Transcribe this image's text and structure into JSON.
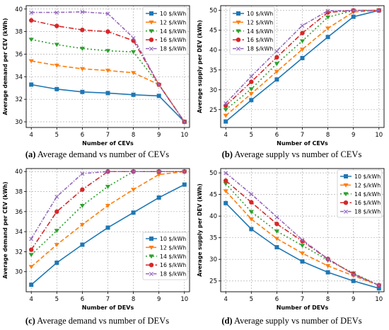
{
  "colors": [
    "#1f77b4",
    "#ff7f0e",
    "#2ca02c",
    "#d62728",
    "#9467bd"
  ],
  "captions": [
    {
      "letter": "(a)",
      "text": " Average demand vs number of CEVs"
    },
    {
      "letter": "(b)",
      "text": " Average supply vs number of CEVs"
    },
    {
      "letter": "(c)",
      "text": " Average demand vs number of DEVs"
    },
    {
      "letter": "(d)",
      "text": " Average supply vs number of DEVs"
    }
  ],
  "chart_data": [
    {
      "type": "line",
      "xlabel": "Number of CEVs",
      "ylabel": "Average demand per CEV (kWh)",
      "x": [
        4,
        5,
        6,
        7,
        8,
        9,
        10
      ],
      "xticks": [
        4,
        5,
        6,
        7,
        8,
        9,
        10
      ],
      "ylim": [
        29.5,
        40.3
      ],
      "yticks": [
        30,
        32,
        34,
        36,
        38,
        40
      ],
      "grid": true,
      "legend": "top-right",
      "series": [
        {
          "name": "10 $/kWh",
          "values": [
            33.3,
            32.9,
            32.65,
            32.55,
            32.4,
            32.3,
            30.0
          ]
        },
        {
          "name": "12 $/kWh",
          "values": [
            35.4,
            35.0,
            34.7,
            34.55,
            34.35,
            33.3,
            30.0
          ]
        },
        {
          "name": "14 $/kWh",
          "values": [
            37.3,
            36.85,
            36.5,
            36.3,
            36.2,
            33.3,
            30.0
          ]
        },
        {
          "name": "16 $/kWh",
          "values": [
            39.0,
            38.5,
            38.15,
            38.0,
            37.2,
            33.3,
            30.0
          ]
        },
        {
          "name": "18 $/kWh",
          "values": [
            39.7,
            39.7,
            39.75,
            39.6,
            37.45,
            33.3,
            30.0
          ]
        }
      ]
    },
    {
      "type": "line",
      "xlabel": "Number of CEVs",
      "ylabel": "Average supply per DEV (kWh)",
      "x": [
        4,
        5,
        6,
        7,
        8,
        9,
        10
      ],
      "xticks": [
        4,
        5,
        6,
        7,
        8,
        9,
        10
      ],
      "ylim": [
        20.5,
        51.2
      ],
      "yticks": [
        25,
        30,
        35,
        40,
        45,
        50
      ],
      "grid": true,
      "legend": "top-left",
      "series": [
        {
          "name": "10 $/kWh",
          "values": [
            22.0,
            27.4,
            32.6,
            38.0,
            43.3,
            48.4,
            50.0
          ]
        },
        {
          "name": "12 $/kWh",
          "values": [
            23.5,
            29.0,
            34.6,
            40.2,
            45.5,
            49.6,
            50.0
          ]
        },
        {
          "name": "14 $/kWh",
          "values": [
            25.0,
            30.2,
            36.6,
            42.3,
            48.3,
            50.0,
            50.0
          ]
        },
        {
          "name": "16 $/kWh",
          "values": [
            26.0,
            32.0,
            38.2,
            44.3,
            49.5,
            50.0,
            50.0
          ]
        },
        {
          "name": "18 $/kWh",
          "values": [
            26.6,
            33.4,
            39.8,
            46.2,
            49.9,
            50.0,
            50.0
          ]
        }
      ]
    },
    {
      "type": "line",
      "xlabel": "Number of DEVs",
      "ylabel": "Average demand per CEV (kWh)",
      "x": [
        4,
        5,
        6,
        7,
        8,
        9,
        10
      ],
      "xticks": [
        4,
        5,
        6,
        7,
        8,
        9,
        10
      ],
      "ylim": [
        28.0,
        40.3
      ],
      "yticks": [
        30,
        32,
        34,
        36,
        38,
        40
      ],
      "grid": true,
      "legend": "bottom-right",
      "series": [
        {
          "name": "10 $/kWh",
          "values": [
            28.7,
            30.9,
            32.7,
            34.4,
            35.9,
            37.4,
            38.7
          ]
        },
        {
          "name": "12 $/kWh",
          "values": [
            30.5,
            32.7,
            34.7,
            36.6,
            38.2,
            39.7,
            40.0
          ]
        },
        {
          "name": "14 $/kWh",
          "values": [
            31.7,
            34.1,
            36.6,
            38.5,
            40.0,
            40.0,
            40.0
          ]
        },
        {
          "name": "16 $/kWh",
          "values": [
            32.2,
            36.0,
            38.2,
            40.0,
            40.0,
            40.0,
            40.0
          ]
        },
        {
          "name": "18 $/kWh",
          "values": [
            33.3,
            37.5,
            39.8,
            40.0,
            40.0,
            40.0,
            40.0
          ]
        }
      ]
    },
    {
      "type": "line",
      "xlabel": "Number of DEVs",
      "ylabel": "Average supply per DEV (kWh)",
      "x": [
        4,
        5,
        6,
        7,
        8,
        9,
        10
      ],
      "xticks": [
        4,
        5,
        6,
        7,
        8,
        9,
        10
      ],
      "ylim": [
        22.5,
        51.0
      ],
      "yticks": [
        25,
        30,
        35,
        40,
        45,
        50
      ],
      "grid": true,
      "legend": "top-right",
      "series": [
        {
          "name": "10 $/kWh",
          "values": [
            43.0,
            37.0,
            32.8,
            29.5,
            27.0,
            25.0,
            23.3
          ]
        },
        {
          "name": "12 $/kWh",
          "values": [
            45.8,
            39.3,
            34.8,
            31.4,
            28.5,
            26.2,
            24.0
          ]
        },
        {
          "name": "14 $/kWh",
          "values": [
            47.5,
            41.0,
            36.5,
            33.2,
            29.8,
            26.8,
            24.0
          ]
        },
        {
          "name": "16 $/kWh",
          "values": [
            48.2,
            43.2,
            38.2,
            34.2,
            30.1,
            26.6,
            24.0
          ]
        },
        {
          "name": "18 $/kWh",
          "values": [
            50.0,
            45.1,
            39.8,
            34.5,
            30.1,
            26.5,
            24.0
          ]
        }
      ]
    }
  ]
}
